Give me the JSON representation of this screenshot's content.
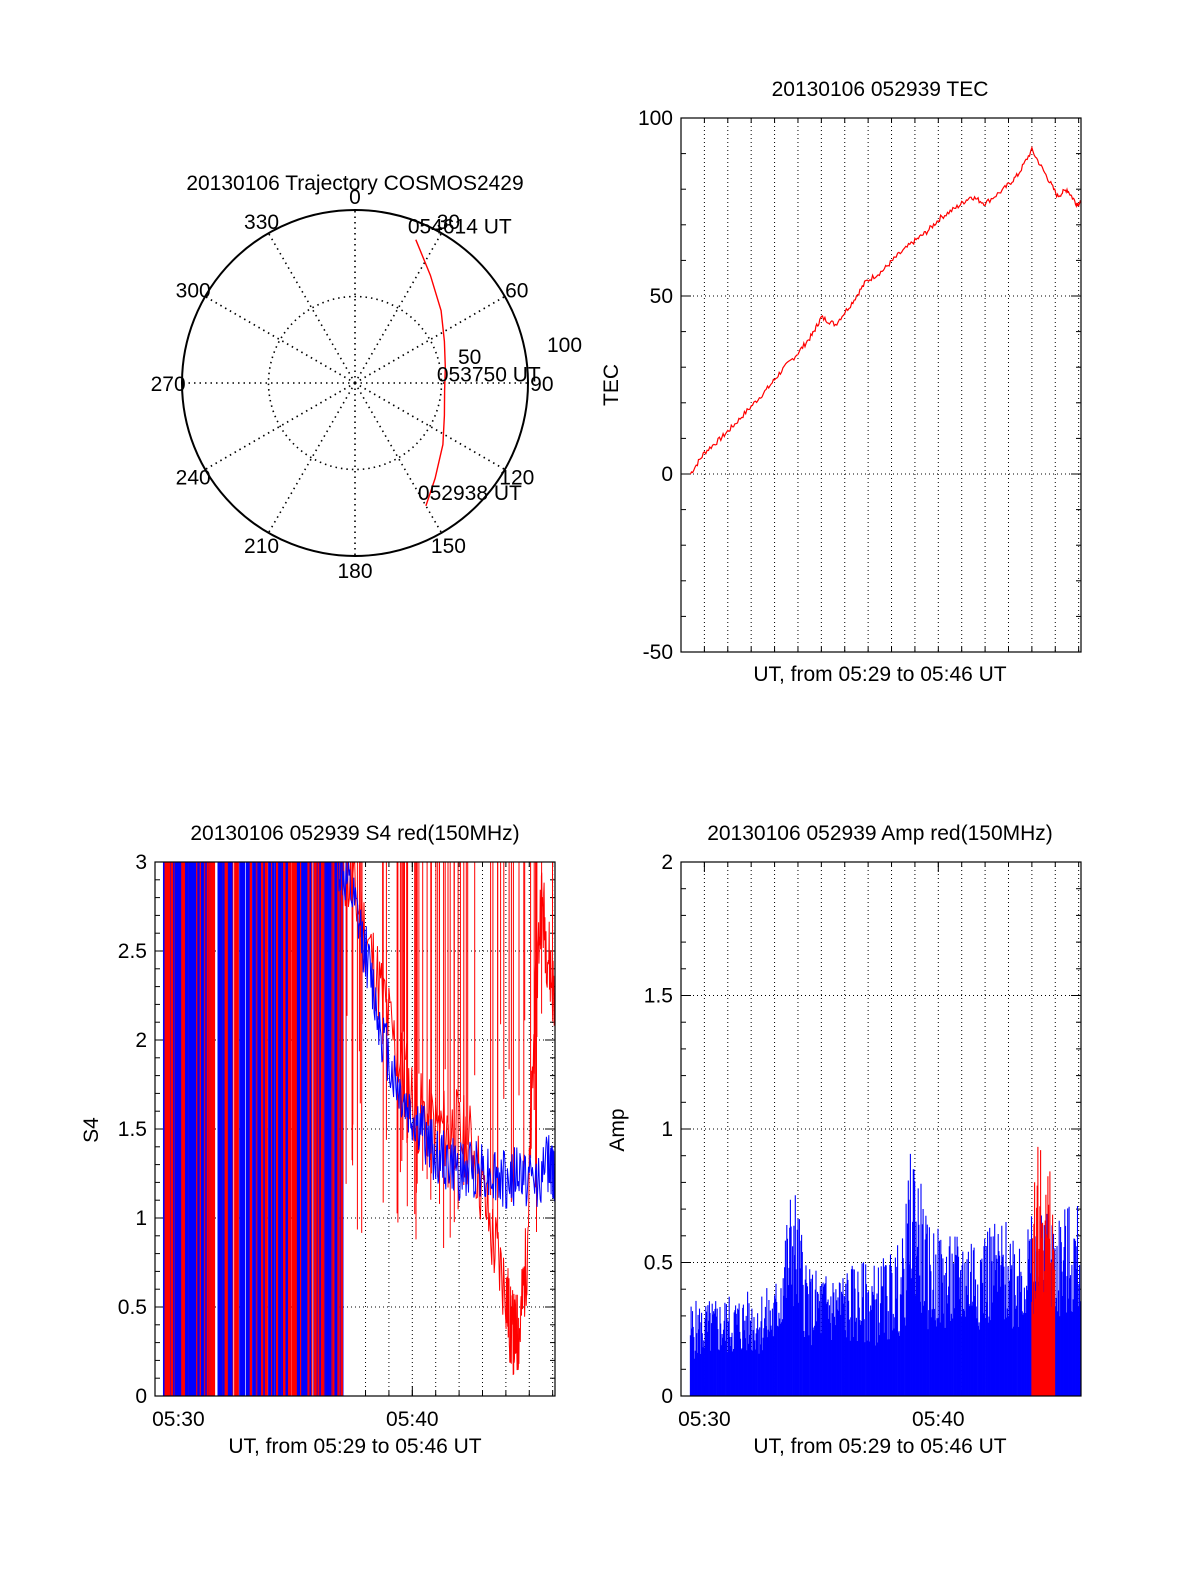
{
  "colors": {
    "red": "#ff0000",
    "blue": "#0000ff",
    "axis": "#000000",
    "grid": "#000000"
  },
  "chart_data": [
    {
      "id": "trajectory",
      "type": "polar",
      "title": "20130106 Trajectory COSMOS2429",
      "angle_ticks": [
        "0",
        "30",
        "60",
        "90",
        "120",
        "150",
        "180",
        "210",
        "240",
        "270",
        "300",
        "330"
      ],
      "radius_ticks": [
        "50",
        "100"
      ],
      "r_range": [
        0,
        100
      ],
      "grid": true,
      "series": [
        {
          "color": "red",
          "points": [
            {
              "az": 150,
              "r": 82
            },
            {
              "az": 140,
              "r": 72
            },
            {
              "az": 125,
              "r": 62
            },
            {
              "az": 110,
              "r": 55
            },
            {
              "az": 95,
              "r": 52
            },
            {
              "az": 80,
              "r": 53
            },
            {
              "az": 65,
              "r": 57
            },
            {
              "az": 50,
              "r": 65
            },
            {
              "az": 35,
              "r": 76
            },
            {
              "az": 23,
              "r": 90
            }
          ]
        }
      ],
      "annotations": [
        {
          "text": "054614 UT",
          "az": 23,
          "r": 90
        },
        {
          "text": "053750 UT",
          "az": 93,
          "r": 52
        },
        {
          "text": "052938 UT",
          "az": 150,
          "r": 82
        }
      ]
    },
    {
      "id": "tec",
      "type": "line",
      "title": "20130106 052939 TEC",
      "xlabel": "UT, from 05:29 to 05:46 UT",
      "ylabel": "TEC",
      "ylim": [
        -50,
        100
      ],
      "yticks": [
        "-50",
        "0",
        "50",
        "100"
      ],
      "xlim_minutes": [
        29.0,
        46.1
      ],
      "xticks": [],
      "grid": true,
      "series": [
        {
          "color": "red",
          "x": [
            29.4,
            30.0,
            30.7,
            31.3,
            32.0,
            32.7,
            33.3,
            34.0,
            34.6,
            35.0,
            35.6,
            36.3,
            36.9,
            37.6,
            38.2,
            38.9,
            39.5,
            40.1,
            40.8,
            41.4,
            42.0,
            42.8,
            43.4,
            44.0,
            44.6,
            45.1,
            45.5,
            45.9,
            46.1
          ],
          "y": [
            0,
            6,
            10,
            14,
            19,
            24,
            29,
            34,
            39,
            44,
            42,
            48,
            54,
            57,
            61,
            65,
            68,
            72,
            75,
            78,
            76,
            80,
            84,
            91,
            84,
            78,
            80,
            76,
            76
          ]
        }
      ]
    },
    {
      "id": "s4",
      "type": "line",
      "title": "20130106 052939 S4 red(150MHz)",
      "xlabel": "UT, from 05:29 to 05:46 UT",
      "ylabel": "S4",
      "ylim": [
        0,
        3
      ],
      "yticks": [
        "0",
        "0.5",
        "1",
        "1.5",
        "2",
        "2.5",
        "3"
      ],
      "xlim_minutes": [
        29.0,
        46.1
      ],
      "xticks": [
        {
          "minute": 30,
          "label": "05:30"
        },
        {
          "minute": 40,
          "label": "05:40"
        }
      ],
      "grid": true,
      "series": [
        {
          "color": "red",
          "x": [
            37.0,
            37.8,
            38.6,
            39.4,
            40.2,
            41.0,
            41.8,
            42.6,
            43.4,
            44.0,
            44.2,
            44.4,
            44.6,
            44.9,
            45.2,
            45.5,
            45.8,
            46.1
          ],
          "y": [
            3.0,
            2.7,
            2.3,
            1.9,
            1.6,
            1.5,
            1.5,
            1.4,
            0.9,
            0.6,
            0.38,
            0.33,
            0.38,
            0.8,
            2.0,
            2.8,
            2.5,
            2.2
          ]
        },
        {
          "color": "blue",
          "x": [
            36.8,
            37.4,
            38.0,
            38.6,
            39.2,
            39.8,
            40.4,
            41.0,
            41.6,
            42.2,
            42.8,
            43.4,
            44.0,
            44.6,
            45.2,
            45.8,
            46.1
          ],
          "y": [
            3.0,
            2.8,
            2.5,
            2.1,
            1.8,
            1.6,
            1.5,
            1.35,
            1.3,
            1.25,
            1.3,
            1.25,
            1.2,
            1.25,
            1.2,
            1.3,
            1.25
          ]
        }
      ]
    },
    {
      "id": "amp",
      "type": "line",
      "title": "20130106 052939 Amp red(150MHz)",
      "xlabel": "UT, from 05:29 to 05:46 UT",
      "ylabel": "Amp",
      "ylim": [
        0,
        2
      ],
      "yticks": [
        "0",
        "0.5",
        "1",
        "1.5",
        "2"
      ],
      "xlim_minutes": [
        29.0,
        46.1
      ],
      "xticks": [
        {
          "minute": 30,
          "label": "05:30"
        },
        {
          "minute": 40,
          "label": "05:40"
        }
      ],
      "grid": true,
      "series": [
        {
          "color": "blue",
          "x": [
            29.4,
            30.0,
            31.0,
            32.0,
            33.0,
            33.8,
            34.0,
            34.5,
            35.5,
            36.5,
            37.5,
            38.5,
            38.9,
            39.5,
            40.5,
            41.5,
            42.5,
            43.5,
            44.5,
            45.5,
            46.1
          ],
          "y": [
            0.3,
            0.3,
            0.32,
            0.33,
            0.35,
            0.7,
            0.6,
            0.4,
            0.4,
            0.42,
            0.42,
            0.5,
            0.85,
            0.55,
            0.5,
            0.55,
            0.55,
            0.55,
            0.58,
            0.6,
            0.6
          ]
        },
        {
          "color": "red",
          "x": [
            44.0,
            44.2,
            44.4,
            44.6,
            44.8,
            45.0
          ],
          "y": [
            0.6,
            0.85,
            0.8,
            0.75,
            0.7,
            0.6
          ]
        }
      ]
    }
  ]
}
